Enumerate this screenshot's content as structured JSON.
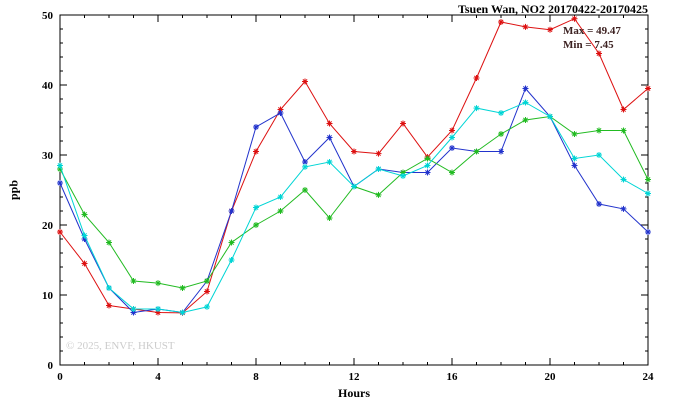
{
  "title": "Tsuen Wan, NO2 20170422-20170425",
  "annotation": {
    "max_label": "Max = 49.47",
    "min_label": "Min = 7.45"
  },
  "watermark": "© 2025, ENVF, HKUST",
  "chart_data": {
    "type": "line",
    "title": "Tsuen Wan, NO2 20170422-20170425",
    "xlabel": "Hours",
    "ylabel": "ppb",
    "xlim": [
      0,
      24
    ],
    "ylim": [
      0,
      50
    ],
    "xticks": [
      0,
      4,
      8,
      12,
      16,
      20,
      24
    ],
    "yticks": [
      0,
      10,
      20,
      30,
      40,
      50
    ],
    "grid": false,
    "legend": "none",
    "marker": "asterisk",
    "x": [
      0,
      1,
      2,
      3,
      4,
      5,
      6,
      7,
      8,
      9,
      10,
      11,
      12,
      13,
      14,
      15,
      16,
      17,
      18,
      19,
      20,
      21,
      22,
      23,
      24
    ],
    "series": [
      {
        "name": "red",
        "color": "#dd1111",
        "values": [
          19,
          14.5,
          8.5,
          8,
          7.5,
          7.45,
          10.5,
          22,
          30.5,
          36.5,
          40.5,
          34.5,
          30.5,
          30.2,
          34.5,
          29.7,
          33.5,
          41,
          49,
          48.3,
          47.9,
          49.47,
          44.5,
          36.5,
          39.5
        ]
      },
      {
        "name": "blue",
        "color": "#2233cc",
        "values": [
          26,
          18,
          11,
          7.5,
          8,
          7.5,
          12,
          22,
          34,
          36,
          29,
          32.5,
          25.5,
          28,
          27.5,
          27.5,
          31,
          30.5,
          30.5,
          39.5,
          35.5,
          28.5,
          23,
          22.3,
          19
        ]
      },
      {
        "name": "green",
        "color": "#22bb22",
        "values": [
          28,
          21.5,
          17.5,
          12,
          11.7,
          11,
          12,
          17.5,
          20,
          22,
          25,
          21,
          25.5,
          24.3,
          27.5,
          29.5,
          27.5,
          30.5,
          33,
          35,
          35.5,
          33,
          33.5,
          33.5,
          26.5
        ]
      },
      {
        "name": "cyan",
        "color": "#00d5d5",
        "values": [
          28.5,
          18.5,
          11,
          8,
          8,
          7.5,
          8.3,
          15,
          22.5,
          24,
          28.3,
          29,
          25.5,
          28,
          27,
          28.5,
          32.5,
          36.7,
          36,
          37.5,
          35.5,
          29.5,
          30,
          26.5,
          24.5
        ]
      }
    ]
  }
}
